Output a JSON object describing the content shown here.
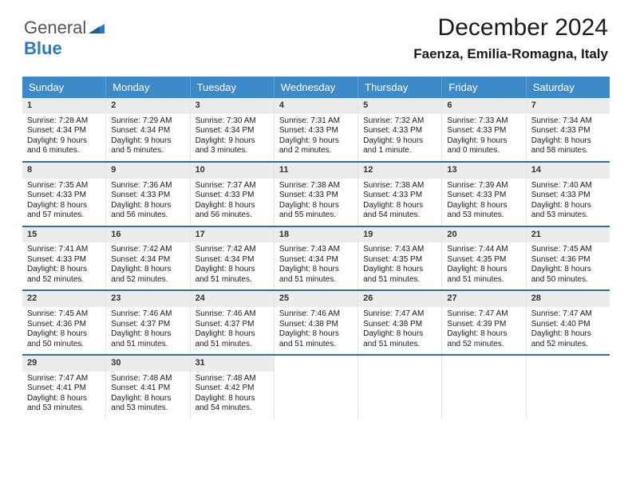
{
  "logo": {
    "word1": "General",
    "word2": "Blue"
  },
  "title": "December 2024",
  "location": "Faenza, Emilia-Romagna, Italy",
  "colors": {
    "header_bg": "#3e8ac8",
    "week_rule": "#2a6fa6",
    "daynum_bg": "#ececec",
    "text": "#1a1a1a",
    "logo_gray": "#555555",
    "logo_blue": "#2b7ac0"
  },
  "font": {
    "title_size": 30,
    "location_size": 17,
    "dayname_size": 13,
    "daynum_size": 11,
    "body_size": 10
  },
  "daynames": [
    "Sunday",
    "Monday",
    "Tuesday",
    "Wednesday",
    "Thursday",
    "Friday",
    "Saturday"
  ],
  "weeks": [
    [
      {
        "n": "1",
        "sr": "Sunrise: 7:28 AM",
        "ss": "Sunset: 4:34 PM",
        "dl": "Daylight: 9 hours and 6 minutes."
      },
      {
        "n": "2",
        "sr": "Sunrise: 7:29 AM",
        "ss": "Sunset: 4:34 PM",
        "dl": "Daylight: 9 hours and 5 minutes."
      },
      {
        "n": "3",
        "sr": "Sunrise: 7:30 AM",
        "ss": "Sunset: 4:34 PM",
        "dl": "Daylight: 9 hours and 3 minutes."
      },
      {
        "n": "4",
        "sr": "Sunrise: 7:31 AM",
        "ss": "Sunset: 4:33 PM",
        "dl": "Daylight: 9 hours and 2 minutes."
      },
      {
        "n": "5",
        "sr": "Sunrise: 7:32 AM",
        "ss": "Sunset: 4:33 PM",
        "dl": "Daylight: 9 hours and 1 minute."
      },
      {
        "n": "6",
        "sr": "Sunrise: 7:33 AM",
        "ss": "Sunset: 4:33 PM",
        "dl": "Daylight: 9 hours and 0 minutes."
      },
      {
        "n": "7",
        "sr": "Sunrise: 7:34 AM",
        "ss": "Sunset: 4:33 PM",
        "dl": "Daylight: 8 hours and 58 minutes."
      }
    ],
    [
      {
        "n": "8",
        "sr": "Sunrise: 7:35 AM",
        "ss": "Sunset: 4:33 PM",
        "dl": "Daylight: 8 hours and 57 minutes."
      },
      {
        "n": "9",
        "sr": "Sunrise: 7:36 AM",
        "ss": "Sunset: 4:33 PM",
        "dl": "Daylight: 8 hours and 56 minutes."
      },
      {
        "n": "10",
        "sr": "Sunrise: 7:37 AM",
        "ss": "Sunset: 4:33 PM",
        "dl": "Daylight: 8 hours and 56 minutes."
      },
      {
        "n": "11",
        "sr": "Sunrise: 7:38 AM",
        "ss": "Sunset: 4:33 PM",
        "dl": "Daylight: 8 hours and 55 minutes."
      },
      {
        "n": "12",
        "sr": "Sunrise: 7:38 AM",
        "ss": "Sunset: 4:33 PM",
        "dl": "Daylight: 8 hours and 54 minutes."
      },
      {
        "n": "13",
        "sr": "Sunrise: 7:39 AM",
        "ss": "Sunset: 4:33 PM",
        "dl": "Daylight: 8 hours and 53 minutes."
      },
      {
        "n": "14",
        "sr": "Sunrise: 7:40 AM",
        "ss": "Sunset: 4:33 PM",
        "dl": "Daylight: 8 hours and 53 minutes."
      }
    ],
    [
      {
        "n": "15",
        "sr": "Sunrise: 7:41 AM",
        "ss": "Sunset: 4:33 PM",
        "dl": "Daylight: 8 hours and 52 minutes."
      },
      {
        "n": "16",
        "sr": "Sunrise: 7:42 AM",
        "ss": "Sunset: 4:34 PM",
        "dl": "Daylight: 8 hours and 52 minutes."
      },
      {
        "n": "17",
        "sr": "Sunrise: 7:42 AM",
        "ss": "Sunset: 4:34 PM",
        "dl": "Daylight: 8 hours and 51 minutes."
      },
      {
        "n": "18",
        "sr": "Sunrise: 7:43 AM",
        "ss": "Sunset: 4:34 PM",
        "dl": "Daylight: 8 hours and 51 minutes."
      },
      {
        "n": "19",
        "sr": "Sunrise: 7:43 AM",
        "ss": "Sunset: 4:35 PM",
        "dl": "Daylight: 8 hours and 51 minutes."
      },
      {
        "n": "20",
        "sr": "Sunrise: 7:44 AM",
        "ss": "Sunset: 4:35 PM",
        "dl": "Daylight: 8 hours and 51 minutes."
      },
      {
        "n": "21",
        "sr": "Sunrise: 7:45 AM",
        "ss": "Sunset: 4:36 PM",
        "dl": "Daylight: 8 hours and 50 minutes."
      }
    ],
    [
      {
        "n": "22",
        "sr": "Sunrise: 7:45 AM",
        "ss": "Sunset: 4:36 PM",
        "dl": "Daylight: 8 hours and 50 minutes."
      },
      {
        "n": "23",
        "sr": "Sunrise: 7:46 AM",
        "ss": "Sunset: 4:37 PM",
        "dl": "Daylight: 8 hours and 51 minutes."
      },
      {
        "n": "24",
        "sr": "Sunrise: 7:46 AM",
        "ss": "Sunset: 4:37 PM",
        "dl": "Daylight: 8 hours and 51 minutes."
      },
      {
        "n": "25",
        "sr": "Sunrise: 7:46 AM",
        "ss": "Sunset: 4:38 PM",
        "dl": "Daylight: 8 hours and 51 minutes."
      },
      {
        "n": "26",
        "sr": "Sunrise: 7:47 AM",
        "ss": "Sunset: 4:38 PM",
        "dl": "Daylight: 8 hours and 51 minutes."
      },
      {
        "n": "27",
        "sr": "Sunrise: 7:47 AM",
        "ss": "Sunset: 4:39 PM",
        "dl": "Daylight: 8 hours and 52 minutes."
      },
      {
        "n": "28",
        "sr": "Sunrise: 7:47 AM",
        "ss": "Sunset: 4:40 PM",
        "dl": "Daylight: 8 hours and 52 minutes."
      }
    ],
    [
      {
        "n": "29",
        "sr": "Sunrise: 7:47 AM",
        "ss": "Sunset: 4:41 PM",
        "dl": "Daylight: 8 hours and 53 minutes."
      },
      {
        "n": "30",
        "sr": "Sunrise: 7:48 AM",
        "ss": "Sunset: 4:41 PM",
        "dl": "Daylight: 8 hours and 53 minutes."
      },
      {
        "n": "31",
        "sr": "Sunrise: 7:48 AM",
        "ss": "Sunset: 4:42 PM",
        "dl": "Daylight: 8 hours and 54 minutes."
      },
      null,
      null,
      null,
      null
    ]
  ]
}
